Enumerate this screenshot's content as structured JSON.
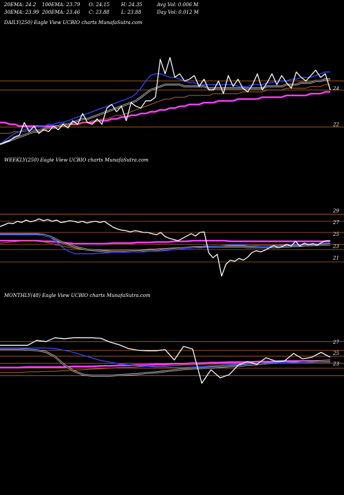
{
  "stats": {
    "row1": [
      "20EMA: 24.2",
      "100EMA: 23.79",
      "O: 24.15",
      "H: 24.35",
      "Avg Vol: 0.006  M"
    ],
    "row2": [
      "30EMA: 23.99",
      "200EMA: 23.46",
      "C: 23.88",
      "L: 23.88",
      "Day Vol: 0.012  M"
    ]
  },
  "colors": {
    "background": "#000000",
    "price": "#ffffff",
    "ema_short": "#2a45ff",
    "ema_long": "#ff3cff",
    "ema_mid": "#cccccc",
    "ema_brown": "#b8651e",
    "grid": "#b8651e"
  },
  "chart_data": [
    {
      "type": "line",
      "title": "DAILY(250) Eagle   View  UCBIO charts MunafaSutra.com",
      "yticks": [
        24,
        22
      ],
      "ylim": [
        20.7,
        26.6
      ],
      "gridlines": [
        24.4,
        23.9,
        21.85
      ],
      "series": [
        {
          "role": "price",
          "values": [
            20.9,
            21.0,
            21.1,
            21.3,
            21.4,
            22.1,
            21.6,
            21.9,
            21.5,
            21.7,
            21.6,
            21.9,
            21.7,
            22.0,
            21.8,
            22.2,
            22.0,
            22.6,
            22.1,
            22.0,
            22.3,
            22.0,
            22.9,
            23.1,
            22.7,
            23.0,
            22.2,
            23.2,
            23.0,
            22.9,
            23.3,
            23.3,
            23.5,
            25.6,
            24.8,
            25.7,
            24.6,
            24.8,
            24.4,
            24.5,
            24.7,
            24.1,
            24.5,
            23.9,
            23.9,
            24.4,
            23.7,
            24.7,
            24.1,
            24.5,
            24.0,
            23.8,
            24.2,
            24.8,
            23.9,
            24.3,
            24.8,
            24.2,
            24.7,
            24.3,
            24.0,
            24.9,
            24.6,
            24.4,
            24.7,
            25.0,
            24.6,
            24.8,
            23.9
          ]
        },
        {
          "role": "ema_short",
          "values": [
            20.9,
            21.1,
            21.3,
            21.5,
            21.6,
            21.7,
            21.8,
            21.8,
            21.9,
            21.9,
            22.0,
            22.0,
            22.1,
            22.1,
            22.2,
            22.3,
            22.4,
            22.5,
            22.6,
            22.7,
            22.8,
            22.9,
            23.0,
            23.1,
            23.2,
            23.3,
            23.4,
            23.5,
            23.7,
            24.0,
            24.4,
            24.7,
            24.8,
            24.8,
            24.7,
            24.6,
            24.6,
            24.5,
            24.4,
            24.3,
            24.3,
            24.2,
            24.2,
            24.2,
            24.2,
            24.2,
            24.2,
            24.2,
            24.2,
            24.1,
            24.1,
            24.1,
            24.2,
            24.2,
            24.2,
            24.3,
            24.3,
            24.4,
            24.4,
            24.4,
            24.5,
            24.5,
            24.6,
            24.6,
            24.6,
            24.7,
            24.8,
            24.9,
            24.9
          ]
        },
        {
          "role": "ema_mid",
          "values": [
            20.9,
            21.0,
            21.1,
            21.2,
            21.3,
            21.4,
            21.5,
            21.6,
            21.6,
            21.7,
            21.8,
            21.8,
            21.9,
            22.0,
            22.0,
            22.1,
            22.2,
            22.3,
            22.3,
            22.4,
            22.5,
            22.6,
            22.7,
            22.8,
            22.9,
            23.0,
            23.1,
            23.2,
            23.3,
            23.5,
            23.7,
            23.9,
            24.0,
            24.1,
            24.2,
            24.2,
            24.2,
            24.2,
            24.1,
            24.1,
            24.1,
            24.1,
            24.1,
            24.0,
            24.0,
            24.0,
            24.0,
            24.0,
            24.0,
            24.0,
            24.0,
            24.0,
            24.0,
            24.0,
            24.0,
            24.1,
            24.1,
            24.1,
            24.1,
            24.2,
            24.2,
            24.2,
            24.3,
            24.3,
            24.3,
            24.4,
            24.4,
            24.5,
            24.5
          ]
        },
        {
          "role": "ema_brown",
          "values": [
            21.5,
            21.5,
            21.5,
            21.6,
            21.6,
            21.6,
            21.7,
            21.7,
            21.7,
            21.8,
            21.8,
            21.8,
            21.9,
            21.9,
            21.9,
            22.0,
            22.0,
            22.1,
            22.1,
            22.2,
            22.2,
            22.3,
            22.3,
            22.4,
            22.5,
            22.5,
            22.6,
            22.7,
            22.8,
            22.9,
            23.0,
            23.1,
            23.2,
            23.3,
            23.4,
            23.4,
            23.5,
            23.5,
            23.5,
            23.6,
            23.6,
            23.6,
            23.6,
            23.6,
            23.7,
            23.7,
            23.7,
            23.7,
            23.7,
            23.7,
            23.8,
            23.8,
            23.8,
            23.8,
            23.8,
            23.9,
            23.9,
            23.9,
            23.9,
            24.0,
            24.0,
            24.0,
            24.0,
            24.0,
            24.1,
            24.1,
            24.1,
            24.2,
            24.2
          ]
        },
        {
          "role": "ema_long",
          "values": [
            22.1,
            22.1,
            22.0,
            22.0,
            21.9,
            21.9,
            21.9,
            21.9,
            21.9,
            21.9,
            21.9,
            21.9,
            21.9,
            22.0,
            22.0,
            22.0,
            22.0,
            22.1,
            22.1,
            22.1,
            22.2,
            22.2,
            22.2,
            22.3,
            22.3,
            22.4,
            22.4,
            22.5,
            22.5,
            22.6,
            22.6,
            22.7,
            22.7,
            22.8,
            22.8,
            22.9,
            22.9,
            23.0,
            23.0,
            23.1,
            23.1,
            23.1,
            23.2,
            23.2,
            23.2,
            23.3,
            23.3,
            23.3,
            23.3,
            23.4,
            23.4,
            23.4,
            23.4,
            23.4,
            23.5,
            23.5,
            23.5,
            23.5,
            23.5,
            23.6,
            23.6,
            23.6,
            23.6,
            23.6,
            23.7,
            23.7,
            23.7,
            23.8,
            23.8
          ]
        }
      ]
    },
    {
      "type": "line",
      "title": "WEEKLY(250) Eagle   View  UCBIO charts MunafaSutra.com",
      "yticks": [
        29,
        27,
        25,
        23,
        21
      ],
      "ylim": [
        17.5,
        31.5
      ],
      "gridlines": [
        28.4,
        27.2,
        25.3,
        23.3,
        22.4,
        20.3
      ],
      "series": [
        {
          "role": "price",
          "values": [
            26.3,
            26.6,
            26.9,
            26.8,
            27.2,
            27.0,
            27.4,
            27.1,
            27.3,
            27.6,
            27.3,
            27.5,
            27.2,
            27.4,
            27.0,
            27.1,
            27.3,
            27.2,
            27.0,
            27.2,
            26.9,
            27.1,
            27.2,
            27.0,
            27.2,
            26.7,
            26.2,
            25.9,
            25.7,
            25.6,
            25.4,
            25.6,
            25.5,
            25.3,
            25.3,
            25.1,
            24.9,
            25.3,
            24.6,
            24.3,
            24.1,
            23.9,
            24.3,
            24.7,
            25.1,
            24.7,
            25.3,
            25.4,
            21.9,
            21.0,
            21.6,
            17.9,
            19.9,
            20.6,
            20.4,
            20.9,
            20.6,
            21.1,
            21.9,
            22.2,
            22.0,
            22.3,
            22.7,
            23.1,
            22.7,
            22.9,
            23.3,
            23.0,
            23.8,
            23.0,
            23.5,
            23.2,
            23.4,
            23.1,
            23.6,
            23.9,
            23.9
          ]
        },
        {
          "role": "ema_short",
          "values": [
            25.0,
            25.0,
            25.0,
            25.0,
            25.0,
            25.0,
            25.0,
            24.8,
            24.5,
            23.7,
            22.8,
            22.1,
            21.7,
            21.7,
            21.7,
            21.7,
            21.8,
            21.8,
            21.9,
            21.9,
            21.9,
            22.0,
            22.0,
            22.0,
            22.1,
            22.1,
            22.2,
            22.3,
            22.4,
            22.5,
            22.6,
            22.7,
            22.8,
            22.9,
            23.0,
            23.0,
            23.1,
            23.2,
            23.2,
            23.2,
            23.1,
            23.0,
            22.9,
            22.9,
            23.0,
            23.1,
            23.2,
            23.3,
            23.3,
            23.4,
            23.4,
            23.4,
            23.5,
            23.5
          ]
        },
        {
          "role": "ema_mid",
          "values": [
            25.0,
            25.0,
            25.0,
            25.0,
            25.0,
            25.0,
            25.0,
            24.9,
            24.6,
            24.1,
            23.6,
            23.2,
            22.9,
            22.6,
            22.4,
            22.3,
            22.2,
            22.1,
            22.0,
            22.0,
            22.0,
            22.1,
            22.1,
            22.2,
            22.2,
            22.3,
            22.4,
            22.5,
            22.5,
            22.6,
            22.7,
            22.8,
            22.8,
            22.9,
            22.9,
            22.9,
            22.9,
            22.9,
            22.9,
            22.9,
            22.8,
            22.8,
            22.8,
            22.8,
            22.8,
            22.9,
            22.9,
            23.0,
            23.0,
            23.1,
            23.1,
            23.2,
            23.2,
            23.3
          ]
        },
        {
          "role": "ema_brown",
          "values": [
            23.5,
            23.6,
            23.7,
            23.8,
            23.9,
            23.9,
            23.8,
            23.7,
            23.5,
            23.2,
            23.0,
            22.8,
            22.6,
            22.5,
            22.4,
            22.3,
            22.3,
            22.3,
            22.3,
            22.3,
            22.3,
            22.4,
            22.4,
            22.4,
            22.5,
            22.5,
            22.6,
            22.6,
            22.7,
            22.7,
            22.8,
            22.8,
            22.9,
            22.9,
            23.0,
            23.0,
            23.0,
            23.1,
            23.1,
            23.1,
            23.1,
            23.1,
            23.1,
            23.1,
            23.1,
            23.2,
            23.2,
            23.2,
            23.2,
            23.3,
            23.3,
            23.3,
            23.3,
            23.4
          ]
        },
        {
          "role": "ema_long",
          "values": [
            23.9,
            23.9,
            23.9,
            23.9,
            23.9,
            23.9,
            23.9,
            23.8,
            23.8,
            23.7,
            23.6,
            23.5,
            23.4,
            23.4,
            23.4,
            23.4,
            23.4,
            23.4,
            23.5,
            23.5,
            23.5,
            23.5,
            23.6,
            23.6,
            23.6,
            23.7,
            23.7,
            23.7,
            23.8,
            23.8,
            23.8,
            23.9,
            23.9,
            23.9,
            23.9,
            23.9,
            23.9,
            23.8,
            23.8,
            23.8,
            23.8,
            23.8,
            23.8,
            23.8,
            23.8,
            23.8,
            23.8,
            23.8,
            23.8,
            23.8,
            23.8,
            23.8,
            23.8,
            23.8
          ]
        }
      ]
    },
    {
      "type": "line",
      "title": "MONTHLY(48) Eagle   View  UCBIO charts MunafaSutra.com",
      "yticks": [
        27,
        25,
        23
      ],
      "ylim": [
        14.0,
        30.5
      ],
      "gridlines": [
        27.1,
        25.5,
        24.4,
        23.1,
        22.2,
        20.8
      ],
      "series": [
        {
          "role": "price",
          "values": [
            26.4,
            26.4,
            26.4,
            26.4,
            27.3,
            27.1,
            27.8,
            27.6,
            27.8,
            27.8,
            27.8,
            27.7,
            27.0,
            26.5,
            25.8,
            25.5,
            25.4,
            25.4,
            25.6,
            23.7,
            26.2,
            25.7,
            19.4,
            21.9,
            20.4,
            21.0,
            22.8,
            23.4,
            22.9,
            24.1,
            23.5,
            23.5,
            24.9,
            23.9,
            24.2,
            25.1,
            24.2
          ]
        },
        {
          "role": "ema_short",
          "values": [
            25.9,
            25.9,
            25.9,
            25.9,
            25.9,
            25.9,
            25.8,
            25.5,
            25.1,
            24.6,
            24.1,
            23.6,
            23.3,
            23.0,
            22.8,
            22.6,
            22.5,
            22.4,
            22.4,
            22.3,
            22.3,
            22.4,
            22.5,
            22.6,
            22.7,
            22.8,
            22.9,
            23.0,
            23.1,
            23.1,
            23.2,
            23.2,
            23.3,
            23.3,
            23.4,
            23.4,
            23.5
          ]
        },
        {
          "role": "ema_mid",
          "values": [
            25.7,
            25.7,
            25.7,
            25.6,
            25.5,
            25.2,
            24.3,
            22.8,
            21.7,
            21.0,
            20.8,
            20.8,
            20.8,
            20.9,
            21.0,
            21.1,
            21.3,
            21.4,
            21.6,
            21.8,
            22.0,
            22.1,
            22.2,
            22.3,
            22.4,
            22.5,
            22.6,
            22.8,
            22.9,
            23.1,
            23.2,
            23.3,
            23.3,
            23.4,
            23.4,
            23.5,
            23.6
          ]
        },
        {
          "role": "ema_brown",
          "values": [
            21.4,
            21.4,
            21.4,
            21.5,
            21.5,
            21.6,
            21.6,
            21.7,
            21.8,
            21.9,
            22.0,
            22.1,
            22.2,
            22.3,
            22.3,
            22.4,
            22.5,
            22.6,
            22.6,
            22.7,
            22.8,
            22.8,
            22.9,
            22.9,
            23.0,
            23.0,
            23.0,
            23.1,
            23.1,
            23.1,
            23.2,
            23.2,
            23.2,
            23.3,
            23.3,
            23.3,
            23.3
          ]
        },
        {
          "role": "ema_long",
          "values": [
            22.3,
            22.3,
            22.3,
            22.4,
            22.4,
            22.4,
            22.4,
            22.4,
            22.5,
            22.5,
            22.5,
            22.6,
            22.6,
            22.7,
            22.7,
            22.8,
            22.8,
            22.9,
            22.9,
            23.0,
            23.0,
            23.1,
            23.1,
            23.2,
            23.2,
            23.3,
            23.3,
            23.3,
            23.4,
            23.4,
            23.4,
            23.5,
            23.5,
            23.5,
            23.5,
            23.5,
            23.5
          ]
        }
      ]
    }
  ]
}
